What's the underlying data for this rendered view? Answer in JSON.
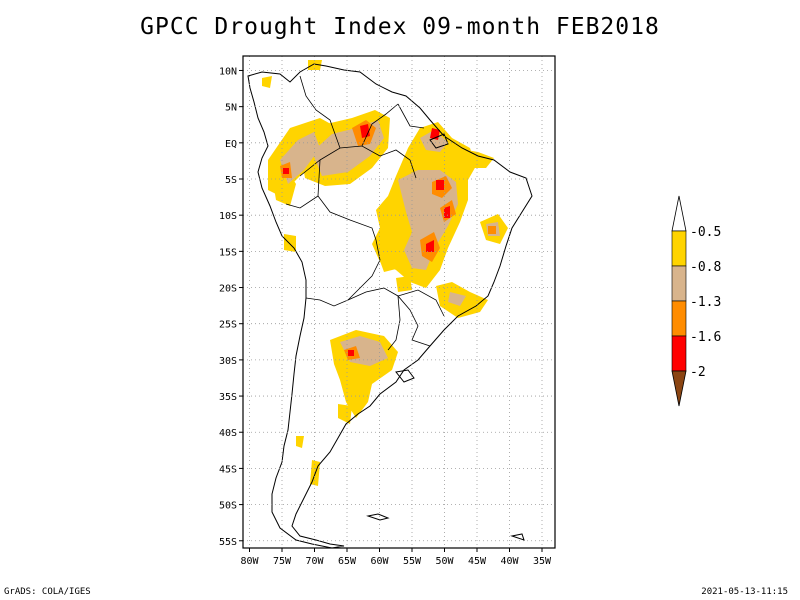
{
  "title": "GPCC Drought Index 09-month FEB2018",
  "footer": {
    "left": "GrADS: COLA/IGES",
    "right": "2021-05-13-11:15"
  },
  "map": {
    "region": "South America",
    "lon_range": [
      -81,
      -33
    ],
    "lat_range": [
      -56,
      12
    ],
    "grid": true,
    "lat_labels": [
      {
        "lat": 10,
        "label": "10N"
      },
      {
        "lat": 5,
        "label": "5N"
      },
      {
        "lat": 0,
        "label": "EQ"
      },
      {
        "lat": -5,
        "label": "5S"
      },
      {
        "lat": -10,
        "label": "10S"
      },
      {
        "lat": -15,
        "label": "15S"
      },
      {
        "lat": -20,
        "label": "20S"
      },
      {
        "lat": -25,
        "label": "25S"
      },
      {
        "lat": -30,
        "label": "30S"
      },
      {
        "lat": -35,
        "label": "35S"
      },
      {
        "lat": -40,
        "label": "40S"
      },
      {
        "lat": -45,
        "label": "45S"
      },
      {
        "lat": -50,
        "label": "50S"
      },
      {
        "lat": -55,
        "label": "55S"
      }
    ],
    "lon_labels": [
      {
        "lon": -80,
        "label": "80W"
      },
      {
        "lon": -75,
        "label": "75W"
      },
      {
        "lon": -70,
        "label": "70W"
      },
      {
        "lon": -65,
        "label": "65W"
      },
      {
        "lon": -60,
        "label": "60W"
      },
      {
        "lon": -55,
        "label": "55W"
      },
      {
        "lon": -50,
        "label": "50W"
      },
      {
        "lon": -45,
        "label": "45W"
      },
      {
        "lon": -40,
        "label": "40W"
      },
      {
        "lon": -35,
        "label": "35W"
      }
    ]
  },
  "colorbar": {
    "orientation": "vertical",
    "placement": "right",
    "segments": [
      {
        "color": "#ffffff",
        "range": "> -0.5"
      },
      {
        "color": "#ffd400",
        "range": "-0.8 to -0.5"
      },
      {
        "color": "#d8b48c",
        "range": "-1.3 to -0.8"
      },
      {
        "color": "#ff8c00",
        "range": "-1.6 to -1.3"
      },
      {
        "color": "#ff0000",
        "range": "-2 to -1.6"
      },
      {
        "color": "#8b4513",
        "range": "< -2"
      }
    ],
    "labels": [
      "-0.5",
      "-0.8",
      "-1.3",
      "-1.6",
      "-2"
    ]
  },
  "colors": {
    "yellow": "#ffd400",
    "tan": "#d8b48c",
    "orange": "#ff8c00",
    "red": "#ff0000",
    "brown": "#8b4513"
  }
}
